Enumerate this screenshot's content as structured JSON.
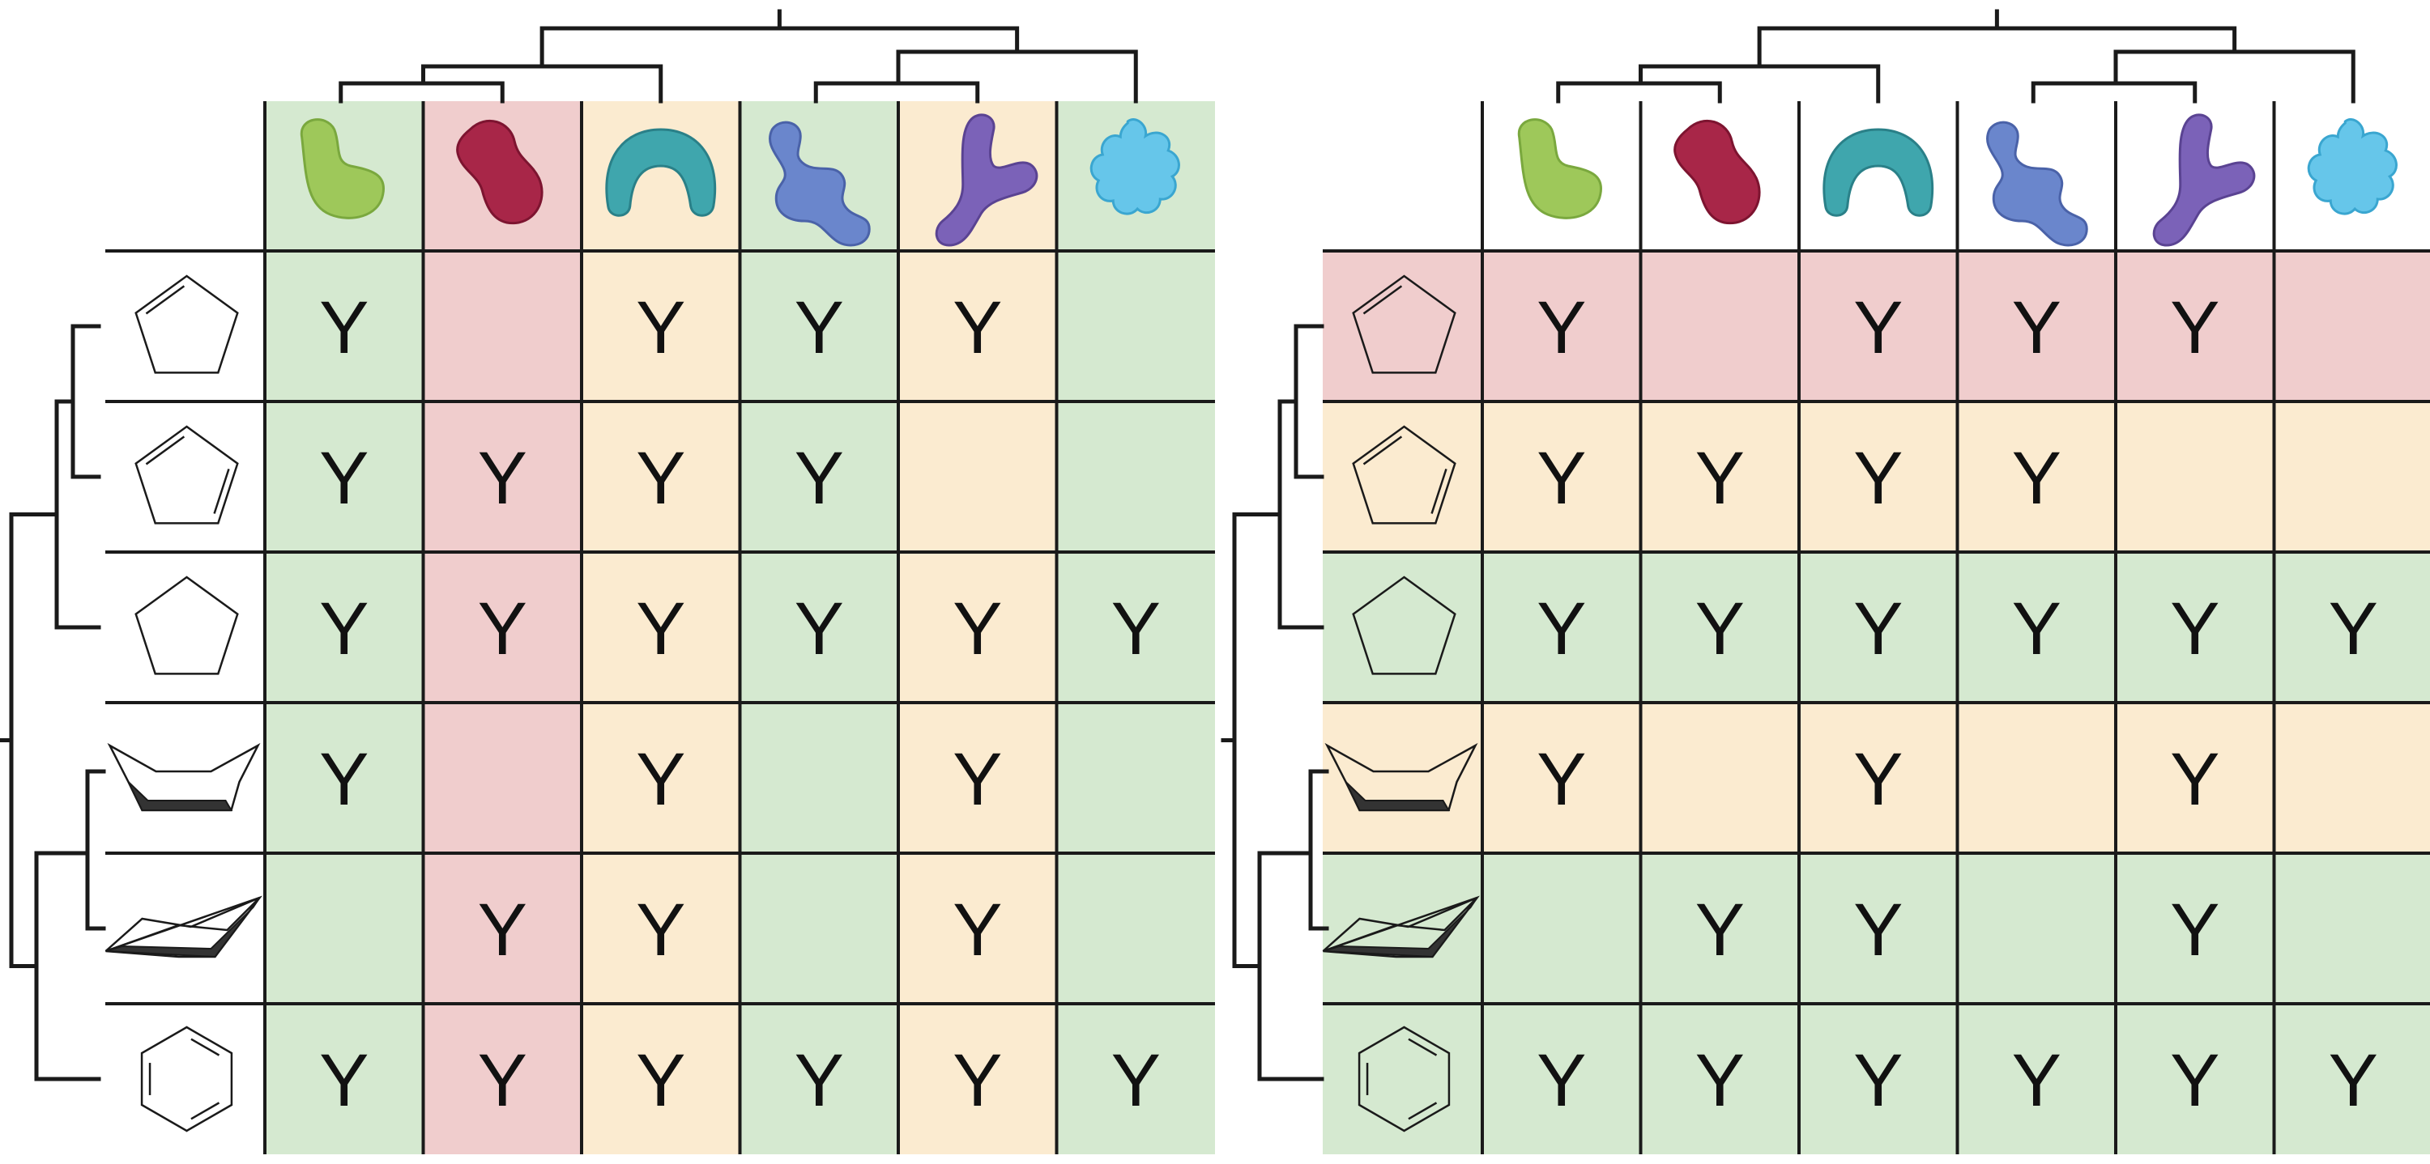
{
  "colors": {
    "green": "#d5e9d0",
    "red": "#f0cdcd",
    "orange": "#fbebd0",
    "line": "#1a1a1a",
    "white": "#ffffff"
  },
  "proteins": [
    {
      "icon": "green-kidney-protein-icon",
      "color": "#9ec85a",
      "shade": "#7aa83e"
    },
    {
      "icon": "crimson-blob-protein-icon",
      "color": "#a82648",
      "shade": "#7d1430"
    },
    {
      "icon": "teal-horseshoe-protein-icon",
      "color": "#3fa6ad",
      "shade": "#2a8088"
    },
    {
      "icon": "blue-chain-protein-icon",
      "color": "#6a86cc",
      "shade": "#4a62a8"
    },
    {
      "icon": "purple-y-protein-icon",
      "color": "#7b62b8",
      "shade": "#5a4392"
    },
    {
      "icon": "light-blue-leaf-protein-icon",
      "color": "#66c6ea",
      "shade": "#3aa6d0"
    }
  ],
  "ligands": [
    {
      "icon": "cyclopentene-icon"
    },
    {
      "icon": "cyclopentadiene-icon"
    },
    {
      "icon": "cyclopentane-icon"
    },
    {
      "icon": "cyclohexane-boat-icon"
    },
    {
      "icon": "cyclohexane-chair-icon"
    },
    {
      "icon": "benzene-icon"
    }
  ],
  "matrix": [
    [
      "Y",
      "",
      "Y",
      "Y",
      "Y",
      ""
    ],
    [
      "Y",
      "Y",
      "Y",
      "Y",
      "",
      ""
    ],
    [
      "Y",
      "Y",
      "Y",
      "Y",
      "Y",
      "Y"
    ],
    [
      "Y",
      "",
      "Y",
      "",
      "Y",
      ""
    ],
    [
      "",
      "Y",
      "Y",
      "",
      "Y",
      ""
    ],
    [
      "Y",
      "Y",
      "Y",
      "Y",
      "Y",
      "Y"
    ]
  ],
  "left_panel": {
    "coloring": "by-column",
    "column_colors": [
      "green",
      "red",
      "orange",
      "green",
      "orange",
      "green"
    ]
  },
  "right_panel": {
    "coloring": "by-row",
    "row_colors": [
      "red",
      "orange",
      "green",
      "orange",
      "green",
      "green"
    ]
  }
}
